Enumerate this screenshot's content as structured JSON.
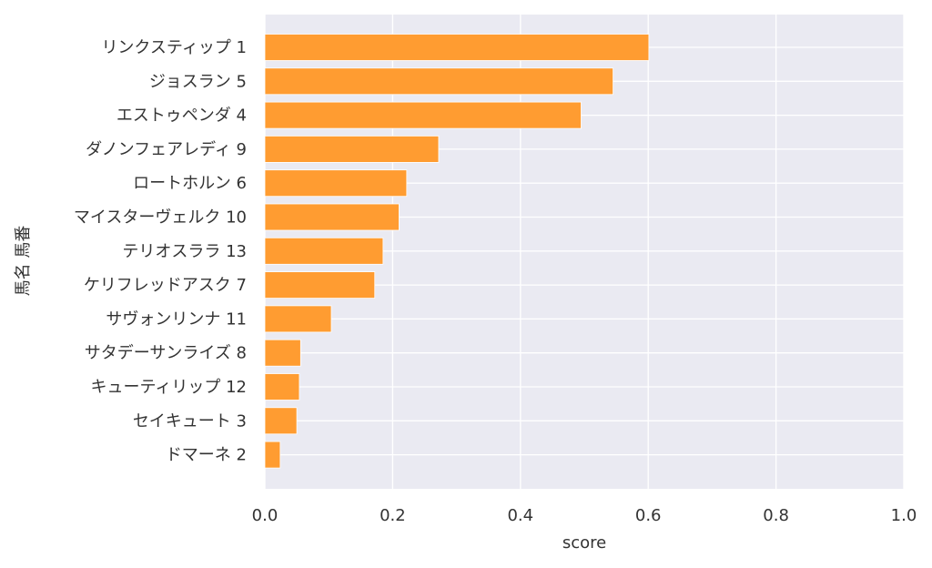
{
  "chart_data": {
    "type": "bar",
    "orientation": "horizontal",
    "xlabel": "score",
    "ylabel": "馬名 馬番",
    "xlim": [
      0,
      1.0
    ],
    "xticks": [
      0.0,
      0.2,
      0.4,
      0.6,
      0.8,
      1.0
    ],
    "xtick_labels": [
      "0.0",
      "0.2",
      "0.4",
      "0.6",
      "0.8",
      "1.0"
    ],
    "grid": true,
    "bar_color": "#ff9c31",
    "background_color": "#eaeaf2",
    "categories": [
      "リンクスティップ 1",
      "ジョスラン 5",
      "エストゥペンダ 4",
      "ダノンフェアレディ 9",
      "ロートホルン 6",
      "マイスターヴェルク 10",
      "テリオスララ 13",
      "ケリフレッドアスク 7",
      "サヴォンリンナ 11",
      "サタデーサンライズ 8",
      "キューティリップ 12",
      "セイキュート 3",
      "ドマーネ 2"
    ],
    "values": [
      0.601,
      0.545,
      0.495,
      0.272,
      0.222,
      0.21,
      0.185,
      0.172,
      0.104,
      0.056,
      0.054,
      0.05,
      0.024
    ]
  }
}
